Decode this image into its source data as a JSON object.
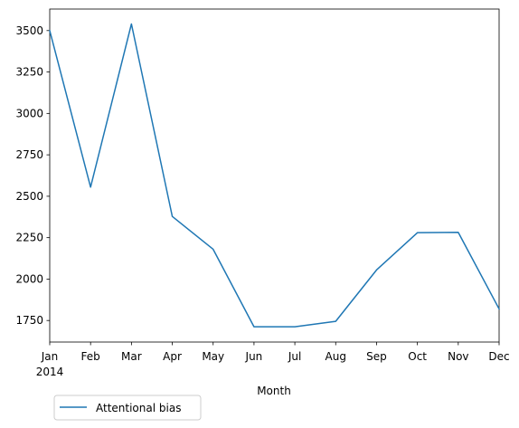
{
  "chart_data": {
    "type": "line",
    "title": "",
    "xlabel": "Month",
    "ylabel": "",
    "categories": [
      "Jan",
      "Feb",
      "Mar",
      "Apr",
      "May",
      "Jun",
      "Jul",
      "Aug",
      "Sep",
      "Oct",
      "Nov",
      "Dec"
    ],
    "year_label": "2014",
    "series": [
      {
        "name": "Attentional bias",
        "color": "#1f77b4",
        "values": [
          3500,
          2555,
          3540,
          2378,
          2180,
          1712,
          1712,
          1745,
          2055,
          2280,
          2282,
          1820
        ]
      }
    ],
    "yticks": [
      "1750",
      "2000",
      "2250",
      "2500",
      "2750",
      "3000",
      "3250",
      "3500"
    ],
    "ylim": [
      1620,
      3630
    ],
    "grid": false,
    "legend_position": "bottom-left, below axes"
  }
}
